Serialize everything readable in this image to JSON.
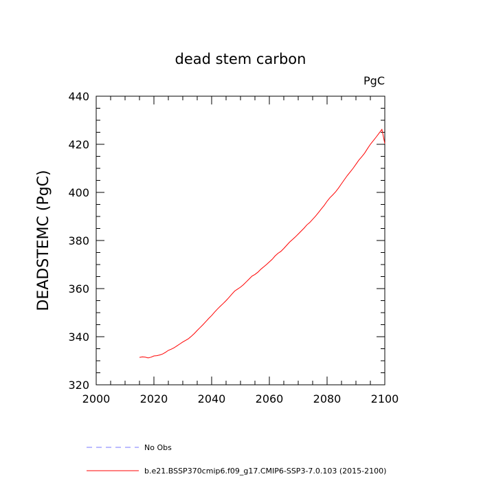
{
  "chart_data": {
    "type": "line",
    "title": "dead stem carbon",
    "units_label": "PgC",
    "ylabel": "DEADSTEMC  (PgC)",
    "xlabel": "",
    "xlim": [
      2000,
      2100
    ],
    "ylim": [
      320,
      440
    ],
    "x_ticks": [
      2000,
      2020,
      2040,
      2060,
      2080,
      2100
    ],
    "y_ticks": [
      320,
      340,
      360,
      380,
      400,
      420,
      440
    ],
    "x_tick_labels": [
      "2000",
      "2020",
      "2040",
      "2060",
      "2080",
      "2100"
    ],
    "y_tick_labels": [
      "320",
      "340",
      "360",
      "380",
      "400",
      "420",
      "440"
    ],
    "grid": false,
    "legend_position": "bottom",
    "series": [
      {
        "name": "No Obs",
        "color": "#7777ff",
        "style": "dashed",
        "x": [],
        "y": []
      },
      {
        "name": "b.e21.BSSP370cmip6.f09_g17.CMIP6-SSP3-7.0.103 (2015-2100)",
        "color": "#ff0000",
        "style": "solid",
        "x": [
          2015,
          2016,
          2017,
          2018,
          2019,
          2020,
          2021,
          2022,
          2023,
          2024,
          2025,
          2026,
          2027,
          2028,
          2029,
          2030,
          2031,
          2032,
          2033,
          2034,
          2035,
          2036,
          2037,
          2038,
          2039,
          2040,
          2041,
          2042,
          2043,
          2044,
          2045,
          2046,
          2047,
          2048,
          2049,
          2050,
          2051,
          2052,
          2053,
          2054,
          2055,
          2056,
          2057,
          2058,
          2059,
          2060,
          2061,
          2062,
          2063,
          2064,
          2065,
          2066,
          2067,
          2068,
          2069,
          2070,
          2071,
          2072,
          2073,
          2074,
          2075,
          2076,
          2077,
          2078,
          2079,
          2080,
          2081,
          2082,
          2083,
          2084,
          2085,
          2086,
          2087,
          2088,
          2089,
          2090,
          2091,
          2092,
          2093,
          2094,
          2095,
          2096,
          2097,
          2098,
          2099,
          2100
        ],
        "y": [
          331.4,
          331.6,
          331.5,
          331.2,
          331.5,
          332.0,
          332.1,
          332.4,
          332.8,
          333.5,
          334.3,
          334.8,
          335.4,
          336.2,
          337.0,
          337.8,
          338.5,
          339.2,
          340.2,
          341.3,
          342.6,
          343.8,
          345.0,
          346.3,
          347.6,
          348.8,
          350.2,
          351.5,
          352.7,
          353.8,
          355.0,
          356.3,
          357.7,
          359.0,
          359.8,
          360.6,
          361.6,
          362.8,
          364.0,
          365.2,
          365.9,
          366.8,
          368.0,
          369.0,
          370.0,
          371.1,
          372.2,
          373.6,
          374.7,
          375.5,
          376.7,
          378.0,
          379.3,
          380.4,
          381.5,
          382.7,
          383.9,
          385.1,
          386.5,
          387.5,
          388.8,
          390.1,
          391.6,
          393.1,
          394.6,
          396.3,
          397.8,
          399.0,
          400.3,
          401.9,
          403.6,
          405.3,
          407.0,
          408.5,
          410.0,
          411.7,
          413.4,
          414.8,
          416.3,
          418.2,
          420.0,
          421.5,
          423.0,
          424.6,
          426.2,
          420.3
        ]
      }
    ]
  }
}
